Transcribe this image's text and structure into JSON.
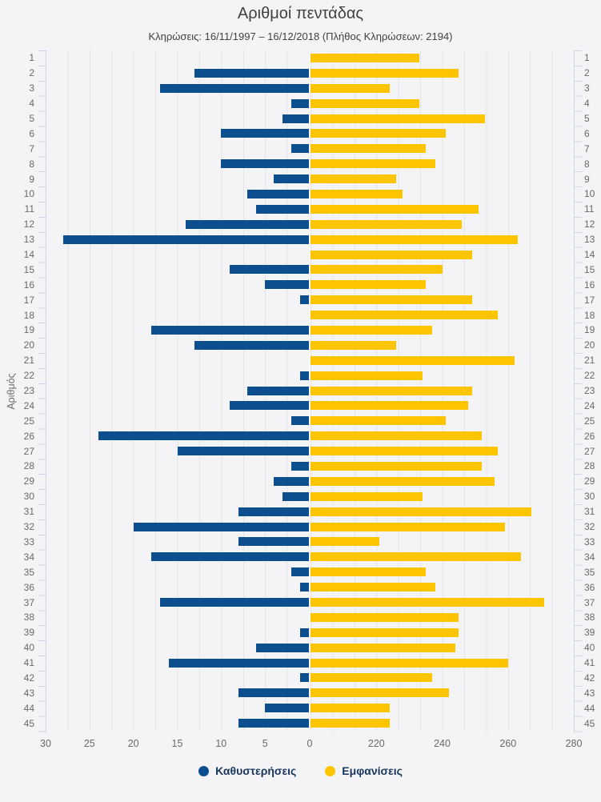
{
  "header": {
    "title": "Αριθμοί πεντάδας",
    "subtitle": "Κληρώσεις: 16/11/1997 – 16/12/2018 (Πλήθος Κληρώσεων: 2194)"
  },
  "chart_data": {
    "type": "bar",
    "orientation": "horizontal-diverging",
    "title": "Αριθμοί πεντάδας",
    "ylabel": "Αριθμός",
    "grid": true,
    "legend_position": "bottom",
    "categories": [
      1,
      2,
      3,
      4,
      5,
      6,
      7,
      8,
      9,
      10,
      11,
      12,
      13,
      14,
      15,
      16,
      17,
      18,
      19,
      20,
      21,
      22,
      23,
      24,
      25,
      26,
      27,
      28,
      29,
      30,
      31,
      32,
      33,
      34,
      35,
      36,
      37,
      38,
      39,
      40,
      41,
      42,
      43,
      44,
      45
    ],
    "series": [
      {
        "name": "Καθυστερήσεις",
        "color": "#0d4e8e",
        "direction": "left",
        "axis_min": 0,
        "axis_max": 30,
        "values": [
          0,
          13,
          17,
          2,
          3,
          10,
          2,
          10,
          4,
          7,
          6,
          14,
          28,
          0,
          9,
          5,
          1,
          0,
          18,
          13,
          0,
          1,
          7,
          9,
          2,
          24,
          15,
          2,
          4,
          3,
          8,
          20,
          8,
          18,
          2,
          1,
          17,
          0,
          1,
          6,
          16,
          1,
          8,
          5,
          8
        ]
      },
      {
        "name": "Εμφανίσεις",
        "color": "#fdc400",
        "direction": "right",
        "axis_min": 200,
        "axis_max": 280,
        "values": [
          233,
          245,
          224,
          233,
          253,
          241,
          235,
          238,
          226,
          228,
          251,
          246,
          263,
          249,
          240,
          235,
          249,
          257,
          237,
          226,
          262,
          234,
          249,
          248,
          241,
          252,
          257,
          252,
          256,
          234,
          267,
          259,
          221,
          264,
          235,
          238,
          271,
          245,
          245,
          244,
          260,
          237,
          242,
          224,
          224
        ]
      }
    ],
    "x_axis_left_ticks": [
      30,
      25,
      20,
      15,
      10,
      5,
      0
    ],
    "x_axis_right_ticks": [
      220,
      240,
      260,
      280
    ]
  },
  "style": {
    "tick_color": "#ccd7e3",
    "grid_color": "#e4e4e7",
    "label_color": "#67696c",
    "legend_text_color": "#17365c",
    "background": "#f4f4f6"
  }
}
